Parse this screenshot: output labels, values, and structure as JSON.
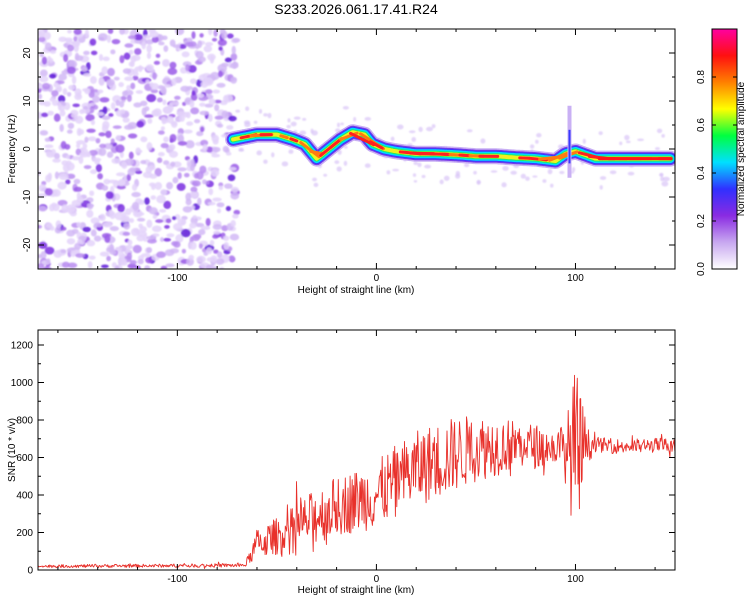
{
  "title": "S233.2026.061.17.41.R24",
  "chart_data": [
    {
      "type": "heatmap",
      "xlabel": "Height of straight line (km)",
      "ylabel": "Frequency (Hz)",
      "xlim": [
        -170,
        150
      ],
      "ylim": [
        -25,
        25
      ],
      "x_ticks": [
        -100,
        0,
        100
      ],
      "x_tick_labels": [
        "-100",
        "0",
        "100"
      ],
      "y_ticks": [
        -20,
        -10,
        0,
        10,
        20
      ],
      "y_tick_labels": [
        "-20",
        "-10",
        "0",
        "10",
        "20"
      ],
      "colorbar": {
        "label": "Normalized spectral amplitude",
        "range": [
          0,
          1
        ],
        "ticks": [
          0,
          0.2,
          0.4,
          0.6,
          0.8
        ],
        "tick_labels": [
          "0.0",
          "0.2",
          "0.4",
          "0.6",
          "0.8"
        ],
        "colors": [
          "#ffffff",
          "#c8a8f0",
          "#8a2be2",
          "#3030ff",
          "#00e0ff",
          "#00ff40",
          "#ffff00",
          "#ff8000",
          "#ff1010",
          "#ff00a0"
        ]
      },
      "noise_region_x": [
        -170,
        -70
      ],
      "ridge": {
        "x": [
          -72,
          -60,
          -50,
          -42,
          -36,
          -30,
          -24,
          -18,
          -12,
          -6,
          -2,
          4,
          10,
          20,
          30,
          40,
          50,
          60,
          70,
          80,
          90,
          95,
          100,
          110,
          120,
          130,
          140,
          148
        ],
        "freq": [
          2,
          3,
          3,
          2,
          1,
          -2,
          0,
          2,
          3.5,
          3,
          1,
          0,
          -0.5,
          -1,
          -1,
          -1.2,
          -1.5,
          -1.5,
          -1.8,
          -2,
          -2.5,
          -1,
          -0.5,
          -2,
          -2,
          -2,
          -2,
          -2
        ]
      }
    },
    {
      "type": "line",
      "xlabel": "Height of straight line (km)",
      "ylabel": "SNR (10 * v/v)",
      "xlim": [
        -170,
        150
      ],
      "ylim": [
        0,
        1280
      ],
      "x_ticks": [
        -100,
        0,
        100
      ],
      "x_tick_labels": [
        "-100",
        "0",
        "100"
      ],
      "y_ticks": [
        0,
        200,
        400,
        600,
        800,
        1000,
        1200
      ],
      "y_tick_labels": [
        "0",
        "200",
        "400",
        "600",
        "800",
        "1000",
        "1200"
      ],
      "line_color": "#e8302a",
      "envelope": {
        "x": [
          -170,
          -66,
          -60,
          -50,
          -40,
          -30,
          -20,
          -10,
          0,
          10,
          20,
          30,
          40,
          50,
          60,
          70,
          80,
          90,
          96,
          100,
          103,
          106,
          110,
          120,
          130,
          140,
          150
        ],
        "mean": [
          20,
          25,
          140,
          180,
          230,
          290,
          340,
          370,
          400,
          480,
          540,
          580,
          620,
          650,
          660,
          670,
          660,
          650,
          640,
          600,
          650,
          660,
          670,
          660,
          660,
          665,
          665
        ],
        "amplitude": [
          8,
          10,
          80,
          100,
          120,
          150,
          160,
          170,
          180,
          190,
          200,
          210,
          200,
          180,
          160,
          130,
          120,
          80,
          200,
          500,
          300,
          100,
          40,
          40,
          40,
          40,
          40
        ]
      }
    }
  ]
}
